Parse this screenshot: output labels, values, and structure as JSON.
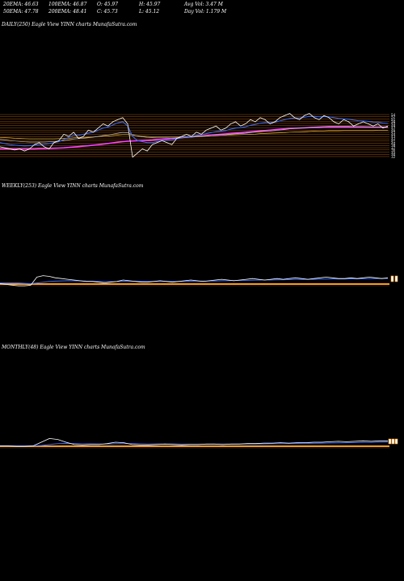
{
  "header": {
    "row1": [
      {
        "key": "ema20",
        "text": "20EMA: 46.63"
      },
      {
        "key": "ema100",
        "text": "100EMA: 46.87"
      },
      {
        "key": "open",
        "text": "O: 45.97"
      },
      {
        "key": "high",
        "text": "H: 45.97"
      },
      {
        "key": "avg_vol",
        "text": "Avg Vol: 3.47 M"
      }
    ],
    "row2": [
      {
        "key": "ema50",
        "text": "50EMA: 47.78"
      },
      {
        "key": "ema200",
        "text": "200EMA: 48.41"
      },
      {
        "key": "close",
        "text": "C: 45.73"
      },
      {
        "key": "low",
        "text": "L: 45.12"
      },
      {
        "key": "day_vol",
        "text": "Day Vol: 1.179 M"
      }
    ]
  },
  "panels": {
    "daily": {
      "title": "DAILY(250) Eagle   View  YINN  charts MunafaSutra.com"
    },
    "weekly": {
      "title": "WEEKLY(253) Eagle   View  YINN  charts MunafaSutra.com"
    },
    "monthly": {
      "title": "MONTHLY(48) Eagle   View  YINN  charts MunafaSutra.com"
    }
  },
  "colors": {
    "background": "#000000",
    "price": "#ffffff",
    "ema20": "#3b6cff",
    "ema50": "#b8b8b8",
    "ema100": "#e0b030",
    "ema200": "#ff40ff",
    "levels": "#c86410",
    "weekly_base": "#ff9a1a"
  },
  "chart_data": [
    {
      "type": "line",
      "name": "daily",
      "ylabels": [
        "54",
        "52",
        "51",
        "50",
        "49",
        "48",
        "47",
        "46",
        "45",
        "44",
        "43",
        "42",
        "41",
        "40",
        "38",
        "37",
        "36",
        "35",
        "34",
        "32"
      ],
      "price": [
        39,
        38.5,
        38,
        37.5,
        38,
        37,
        38,
        40,
        41,
        39,
        38,
        41,
        42,
        45,
        44,
        46,
        43,
        44,
        47,
        46,
        48,
        50,
        49,
        51,
        52,
        53,
        50,
        34,
        36,
        38,
        37,
        40,
        41,
        42,
        41,
        40,
        43,
        44,
        45,
        44,
        46,
        45,
        47,
        48,
        49,
        47,
        48,
        50,
        51,
        49,
        50,
        52,
        51,
        53,
        52,
        50,
        51,
        53,
        54,
        55,
        53,
        52,
        54,
        55,
        53,
        52,
        54,
        53,
        51,
        50,
        52,
        51,
        49,
        50,
        51,
        50,
        49,
        50,
        48,
        49
      ],
      "ema20": [
        41,
        40.5,
        40,
        39.8,
        39.6,
        39.4,
        39.5,
        39.8,
        40,
        40.2,
        40.5,
        41,
        41.5,
        42.5,
        43.5,
        44.5,
        44.5,
        45,
        45.5,
        46,
        47,
        48,
        48.5,
        49.5,
        50.5,
        51,
        49,
        44,
        42,
        41.5,
        41,
        41,
        41.5,
        42,
        42.2,
        42.3,
        42.8,
        43.3,
        43.8,
        44,
        44.5,
        44.8,
        45.3,
        45.8,
        46.3,
        46.5,
        46.8,
        47.5,
        48,
        48.2,
        48.6,
        49.3,
        49.7,
        50.3,
        50.6,
        50.6,
        50.8,
        51.4,
        52,
        52.6,
        52.8,
        52.8,
        53.2,
        53.6,
        53.6,
        53.4,
        53.5,
        53.4,
        53,
        52.6,
        52.4,
        52.2,
        51.8,
        51.5,
        51.4,
        51.2,
        50.9,
        50.8,
        50.4,
        50.2
      ],
      "ema50": [
        42.5,
        42.3,
        42,
        41.8,
        41.6,
        41.4,
        41.3,
        41.3,
        41.3,
        41.3,
        41.4,
        41.5,
        41.7,
        42,
        42.3,
        42.7,
        42.9,
        43.1,
        43.4,
        43.6,
        44,
        44.4,
        44.7,
        45.1,
        45.5,
        45.9,
        45.7,
        44.8,
        44.2,
        43.8,
        43.5,
        43.4,
        43.3,
        43.3,
        43.3,
        43.2,
        43.3,
        43.4,
        43.5,
        43.6,
        43.8,
        43.9,
        44.1,
        44.3,
        44.5,
        44.6,
        44.7,
        45,
        45.2,
        45.3,
        45.5,
        45.8,
        46,
        46.3,
        46.5,
        46.6,
        46.8,
        47,
        47.3,
        47.6,
        47.8,
        47.9,
        48.1,
        48.3,
        48.5,
        48.6,
        48.7,
        48.8,
        48.8,
        48.8,
        48.8,
        48.8,
        48.7,
        48.7,
        48.7,
        48.6,
        48.5,
        48.5,
        48.4,
        48.3
      ],
      "ema100": [
        43.5,
        43.4,
        43.3,
        43.1,
        43,
        42.9,
        42.8,
        42.8,
        42.8,
        42.8,
        42.8,
        42.8,
        42.9,
        43,
        43.1,
        43.3,
        43.4,
        43.5,
        43.6,
        43.7,
        43.9,
        44.1,
        44.2,
        44.4,
        44.6,
        44.8,
        44.8,
        44.5,
        44.3,
        44.1,
        44,
        43.9,
        43.9,
        43.9,
        43.9,
        43.9,
        43.9,
        43.9,
        44,
        44,
        44.1,
        44.1,
        44.2,
        44.3,
        44.4,
        44.5,
        44.5,
        44.6,
        44.7,
        44.8,
        44.9,
        45,
        45.1,
        45.3,
        45.4,
        45.5,
        45.6,
        45.7,
        45.8,
        46,
        46.1,
        46.2,
        46.3,
        46.4,
        46.5,
        46.6,
        46.6,
        46.7,
        46.7,
        46.7,
        46.8,
        46.8,
        46.8,
        46.8,
        46.8,
        46.8,
        46.8,
        46.9,
        46.9,
        46.9
      ],
      "ema200": [
        38,
        38,
        38,
        38,
        38,
        38,
        38,
        38,
        38.1,
        38.1,
        38.2,
        38.3,
        38.4,
        38.5,
        38.7,
        38.9,
        39.1,
        39.3,
        39.5,
        39.8,
        40,
        40.3,
        40.6,
        40.9,
        41.2,
        41.5,
        41.7,
        41.8,
        41.9,
        42,
        42.1,
        42.2,
        42.4,
        42.6,
        42.8,
        43,
        43.2,
        43.4,
        43.6,
        43.8,
        44,
        44.2,
        44.4,
        44.6,
        44.8,
        45,
        45.2,
        45.4,
        45.6,
        45.8,
        46,
        46.2,
        46.4,
        46.6,
        46.8,
        47,
        47.2,
        47.4,
        47.6,
        47.8,
        47.9,
        48,
        48.1,
        48.2,
        48.3,
        48.3,
        48.4,
        48.4,
        48.4,
        48.4,
        48.4,
        48.4,
        48.4,
        48.4,
        48.4,
        48.4,
        48.4,
        48.4,
        48.4,
        48.4
      ]
    },
    {
      "type": "line",
      "name": "weekly",
      "price": [
        5,
        4,
        3,
        2,
        2,
        3,
        14,
        16,
        15,
        13,
        12,
        11,
        10,
        9,
        8,
        8,
        7,
        6,
        7,
        8,
        10,
        9,
        8,
        7,
        7,
        8,
        9,
        8,
        7,
        8,
        9,
        10,
        9,
        8,
        9,
        10,
        11,
        10,
        9,
        10,
        11,
        12,
        11,
        10,
        11,
        12,
        11,
        12,
        13,
        12,
        11,
        12,
        13,
        14,
        13,
        12,
        12,
        13,
        12,
        13,
        14,
        13,
        12,
        13
      ],
      "ema": [
        6,
        6,
        6,
        6,
        5.5,
        5,
        6,
        7,
        8,
        8.5,
        8.8,
        9,
        9,
        8.8,
        8.5,
        8.3,
        8,
        7.8,
        7.8,
        7.9,
        8.2,
        8.3,
        8.3,
        8.2,
        8.1,
        8.1,
        8.2,
        8.2,
        8.1,
        8.1,
        8.2,
        8.4,
        8.5,
        8.5,
        8.6,
        8.8,
        9,
        9.2,
        9.3,
        9.4,
        9.6,
        9.8,
        10,
        10,
        10.1,
        10.3,
        10.4,
        10.6,
        10.8,
        10.9,
        10.9,
        11,
        11.2,
        11.4,
        11.5,
        11.5,
        11.6,
        11.7,
        11.7,
        11.8,
        12,
        12.1,
        12.1,
        12.2
      ]
    },
    {
      "type": "line",
      "name": "monthly",
      "price": [
        6,
        6,
        5,
        5,
        6,
        14,
        22,
        20,
        14,
        9,
        8,
        9,
        9,
        11,
        14,
        13,
        9,
        8,
        8,
        9,
        10,
        9,
        8,
        9,
        9,
        10,
        10,
        9,
        10,
        10,
        11,
        11,
        12,
        12,
        13,
        12,
        13,
        13,
        14,
        14,
        15,
        16,
        15,
        16,
        17,
        16,
        17,
        17
      ],
      "ema": [
        6,
        6,
        6,
        6,
        6,
        7,
        9,
        11,
        11.5,
        11,
        10.5,
        10.3,
        10.1,
        10.2,
        10.7,
        11,
        10.8,
        10.5,
        10.2,
        10.1,
        10.1,
        10,
        9.8,
        9.7,
        9.6,
        9.7,
        9.8,
        9.8,
        9.8,
        9.9,
        10,
        10.2,
        10.4,
        10.6,
        10.9,
        11,
        11.3,
        11.5,
        11.8,
        12.1,
        12.4,
        12.8,
        13,
        13.3,
        13.7,
        13.9,
        14.2,
        14.5
      ]
    }
  ]
}
